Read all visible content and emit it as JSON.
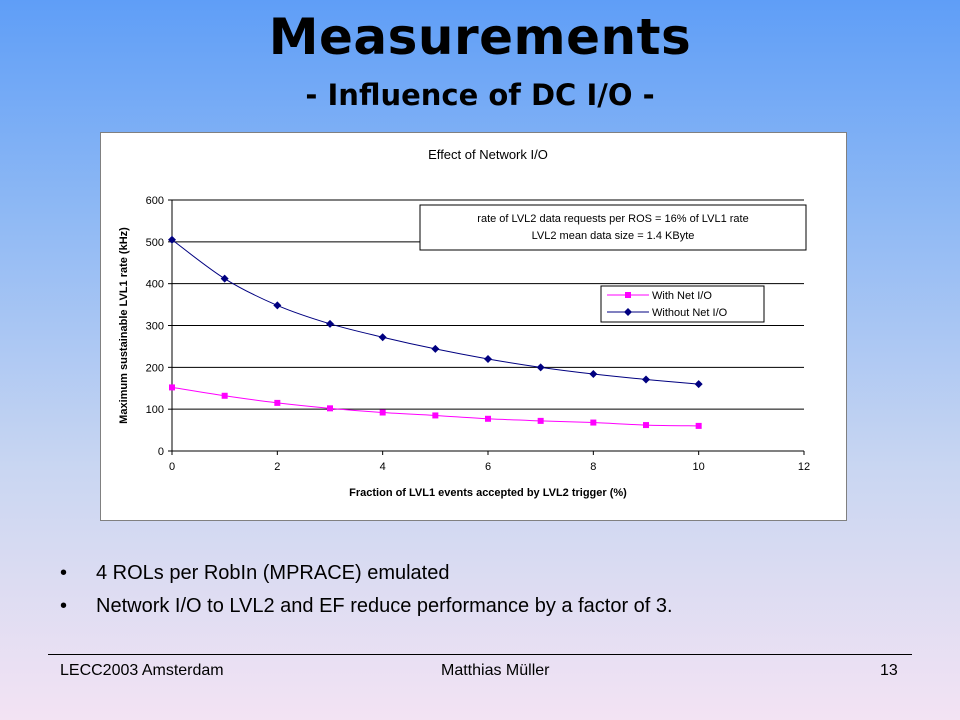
{
  "slide": {
    "title": "Measurements",
    "subtitle": "- Influence of DC I/O -",
    "bullets": [
      "4 ROLs per RobIn (MPRACE) emulated",
      "Network I/O to LVL2 and EF reduce performance by a factor of 3."
    ],
    "footer": {
      "left": "LECC2003 Amsterdam",
      "center": "Matthias Müller",
      "right": "13"
    }
  },
  "chart_data": {
    "type": "line",
    "title": "Effect of Network I/O",
    "xlabel": "Fraction of LVL1 events accepted by LVL2 trigger (%)",
    "ylabel": "Maximum sustainable LVL1 rate (kHz)",
    "xlim": [
      0,
      12
    ],
    "ylim": [
      0,
      600
    ],
    "xticks": [
      0,
      2,
      4,
      6,
      8,
      10,
      12
    ],
    "yticks": [
      0,
      100,
      200,
      300,
      400,
      500,
      600
    ],
    "grid": "horizontal",
    "legend_position": "right",
    "annotation": [
      "rate of LVL2 data requests per ROS = 16% of LVL1 rate",
      "LVL2 mean data size = 1.4 KByte"
    ],
    "x": [
      0,
      1,
      2,
      3,
      4,
      5,
      6,
      7,
      8,
      9,
      10
    ],
    "series": [
      {
        "name": "With Net I/O",
        "color": "#ff00ff",
        "marker": "square",
        "values": [
          152,
          132,
          115,
          102,
          92,
          85,
          77,
          72,
          68,
          62,
          60
        ]
      },
      {
        "name": "Without Net I/O",
        "color": "#000080",
        "marker": "diamond",
        "values": [
          505,
          412,
          348,
          304,
          272,
          244,
          220,
          200,
          184,
          171,
          160
        ]
      }
    ]
  }
}
